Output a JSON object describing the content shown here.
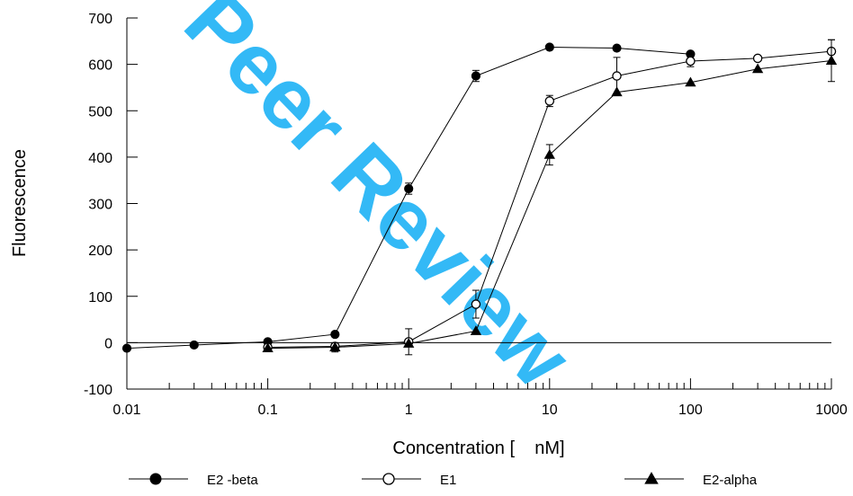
{
  "watermark": "Peer Review",
  "chart_data": {
    "type": "line",
    "x_scale": "log",
    "xlim": [
      0.01,
      1000
    ],
    "ylim": [
      -100,
      700
    ],
    "xlabel": "Concentration [    nM]",
    "ylabel": "Fluorescence",
    "x_ticks": [
      {
        "value": 0.01,
        "label": "0.01"
      },
      {
        "value": 0.1,
        "label": "0.1"
      },
      {
        "value": 1,
        "label": "1"
      },
      {
        "value": 10,
        "label": "10"
      },
      {
        "value": 100,
        "label": "100"
      },
      {
        "value": 1000,
        "label": "1000"
      }
    ],
    "y_ticks": [
      {
        "value": -100,
        "label": "-100"
      },
      {
        "value": 0,
        "label": "0"
      },
      {
        "value": 100,
        "label": "100"
      },
      {
        "value": 200,
        "label": "200"
      },
      {
        "value": 300,
        "label": "300"
      },
      {
        "value": 400,
        "label": "400"
      },
      {
        "value": 500,
        "label": "500"
      },
      {
        "value": 600,
        "label": "600"
      },
      {
        "value": 700,
        "label": "700"
      }
    ],
    "zero_line": true,
    "grid": false,
    "legend_position": "bottom",
    "series": [
      {
        "name": "E2 -beta",
        "marker": "filled-circle",
        "color": "#000000",
        "x": [
          0.01,
          0.03,
          0.1,
          0.3,
          1,
          3,
          10,
          30,
          100
        ],
        "y": [
          -12,
          -5,
          2,
          18,
          332,
          575,
          637,
          635,
          622
        ],
        "err": [
          0,
          0,
          0,
          0,
          12,
          12,
          0,
          0,
          5
        ]
      },
      {
        "name": "E1",
        "marker": "open-circle",
        "color": "#000000",
        "x": [
          0.1,
          0.3,
          1,
          3,
          10,
          30,
          100,
          300,
          1000
        ],
        "y": [
          -10,
          -8,
          2,
          83,
          521,
          575,
          607,
          613,
          628
        ],
        "err": [
          0,
          0,
          28,
          30,
          12,
          40,
          12,
          0,
          25
        ]
      },
      {
        "name": "E2-alpha",
        "marker": "filled-triangle",
        "color": "#000000",
        "x": [
          0.1,
          0.3,
          1,
          3,
          10,
          30,
          100,
          300,
          1000
        ],
        "y": [
          -12,
          -10,
          -2,
          25,
          405,
          540,
          561,
          590,
          608
        ],
        "err": [
          0,
          10,
          0,
          0,
          22,
          0,
          0,
          0,
          45
        ]
      }
    ]
  }
}
